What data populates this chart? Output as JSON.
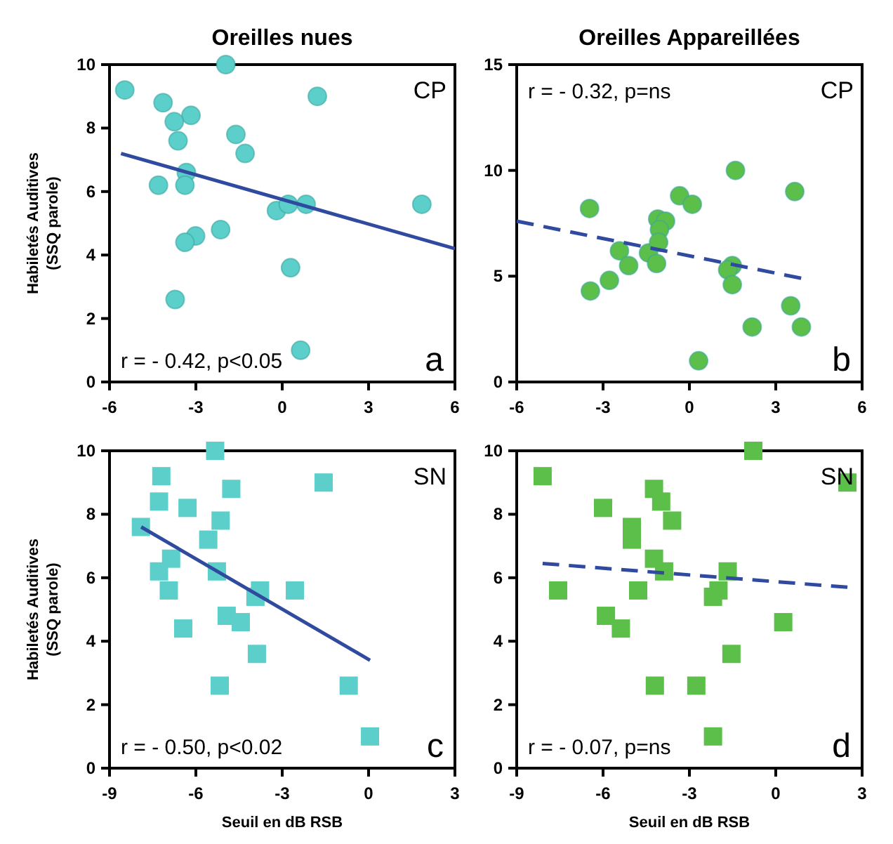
{
  "chart_data": [
    {
      "type": "scatter",
      "title": "Oreilles nues",
      "ylabel": "Habiletés Auditives (SSQ parole)",
      "xlim": [
        -6,
        6
      ],
      "xticks": [
        -6,
        -3,
        0,
        3,
        6
      ],
      "ylim": [
        0,
        10
      ],
      "yticks": [
        0,
        2,
        4,
        6,
        8,
        10
      ],
      "annotations": [
        "r = - 0.42, p<0.05",
        "CP",
        "a"
      ],
      "series": [
        {
          "type": "scatter",
          "marker": "circle",
          "color": "#5ccfcb",
          "x": [
            -5.47,
            -1.96,
            -4.14,
            -3.17,
            -3.75,
            1.22,
            -3.62,
            -1.61,
            -1.29,
            -3.33,
            -4.3,
            -3.38,
            -0.2,
            0.21,
            0.83,
            4.85,
            -2.14,
            -3.01,
            -3.38,
            0.29,
            -3.72,
            0.64
          ],
          "values": [
            9.2,
            10,
            8.8,
            8.4,
            8.2,
            9,
            7.6,
            7.8,
            7.2,
            6.6,
            6.2,
            6.2,
            5.4,
            5.6,
            5.6,
            5.6,
            4.8,
            4.6,
            4.4,
            3.6,
            2.6,
            1
          ]
        },
        {
          "type": "line",
          "color": "#2f4a9e",
          "line_style": "solid",
          "x": [
            -5.6,
            6
          ],
          "values": [
            7.2,
            4.2
          ]
        }
      ]
    },
    {
      "type": "scatter",
      "title": "Oreilles Appareillées",
      "xlim": [
        -6,
        6
      ],
      "xticks": [
        -6,
        -3,
        0,
        3,
        6
      ],
      "ylim": [
        0,
        15
      ],
      "yticks": [
        0,
        5,
        10,
        15
      ],
      "annotations": [
        "r = - 0.32, p=ns",
        "CP",
        "b"
      ],
      "series": [
        {
          "type": "scatter",
          "marker": "circle",
          "color": "#5cbf4a",
          "x": [
            -3.47,
            -3.44,
            -2.78,
            -2.43,
            -2.11,
            -1.42,
            -1.1,
            -0.83,
            -1.04,
            -1.07,
            -1.14,
            -0.34,
            0.1,
            0.32,
            1.6,
            1.49,
            1.33,
            1.49,
            2.18,
            3.66,
            3.52,
            3.89
          ],
          "values": [
            8.2,
            4.3,
            4.8,
            6.2,
            5.5,
            6.1,
            7.7,
            7.6,
            7.2,
            6.6,
            5.6,
            8.8,
            8.4,
            1,
            10,
            5.5,
            5.3,
            4.6,
            2.6,
            9,
            3.6,
            2.6
          ]
        },
        {
          "type": "line",
          "color": "#2f4a9e",
          "line_style": "dashed",
          "x": [
            -6,
            3.89
          ],
          "values": [
            7.6,
            4.9
          ]
        }
      ]
    },
    {
      "type": "scatter",
      "xlabel": "Seuil en dB RSB",
      "ylabel": "Habiletés Auditives (SSQ parole)",
      "xlim": [
        -9,
        3
      ],
      "xticks": [
        -9,
        -6,
        -3,
        0,
        3
      ],
      "ylim": [
        0,
        10
      ],
      "yticks": [
        0,
        2,
        4,
        6,
        8,
        10
      ],
      "annotations": [
        "r = - 0.50, p<0.02",
        "SN",
        "c"
      ],
      "series": [
        {
          "type": "scatter",
          "marker": "square",
          "color": "#5ccfcb",
          "x": [
            -5.33,
            -7.2,
            -1.56,
            -4.77,
            -7.28,
            -6.29,
            -7.91,
            -5.14,
            -5.57,
            -6.86,
            -7.28,
            -5.27,
            -6.94,
            -3.77,
            -2.56,
            -3.93,
            -4.93,
            -4.44,
            -6.44,
            -3.88,
            -5.17,
            -0.69,
            0.05
          ],
          "values": [
            10,
            9.2,
            9,
            8.8,
            8.4,
            8.2,
            7.6,
            7.8,
            7.2,
            6.6,
            6.2,
            6.2,
            5.6,
            5.6,
            5.6,
            5.4,
            4.8,
            4.6,
            4.4,
            3.6,
            2.6,
            2.6,
            1
          ]
        },
        {
          "type": "line",
          "color": "#2f4a9e",
          "line_style": "solid",
          "x": [
            -7.9,
            0.05
          ],
          "values": [
            7.6,
            3.4
          ]
        }
      ]
    },
    {
      "type": "scatter",
      "xlabel": "Seuil en dB RSB",
      "xlim": [
        -9,
        3
      ],
      "xticks": [
        -9,
        -6,
        -3,
        0,
        3
      ],
      "ylim": [
        0,
        10
      ],
      "yticks": [
        0,
        2,
        4,
        6,
        8,
        10
      ],
      "annotations": [
        "r = - 0.07, p=ns",
        "SN",
        "d"
      ],
      "series": [
        {
          "type": "scatter",
          "marker": "square",
          "color": "#5cbf4a",
          "x": [
            -8.1,
            -0.78,
            2.49,
            -4.23,
            -3.98,
            -6,
            -3.6,
            -5,
            -5,
            -4.23,
            -3.88,
            -1.67,
            -7.56,
            -4.78,
            -1.99,
            -2.18,
            0.26,
            -5.9,
            -5.38,
            -1.54,
            -4.2,
            -2.76,
            -2.18
          ],
          "values": [
            9.2,
            10,
            9,
            8.8,
            8.4,
            8.2,
            7.8,
            7.6,
            7.2,
            6.6,
            6.2,
            6.2,
            5.6,
            5.6,
            5.6,
            5.4,
            4.6,
            4.8,
            4.4,
            3.6,
            2.6,
            2.6,
            1
          ]
        },
        {
          "type": "line",
          "color": "#2f4a9e",
          "line_style": "dashed",
          "x": [
            -8.1,
            2.49
          ],
          "values": [
            6.45,
            5.7
          ]
        }
      ]
    }
  ]
}
